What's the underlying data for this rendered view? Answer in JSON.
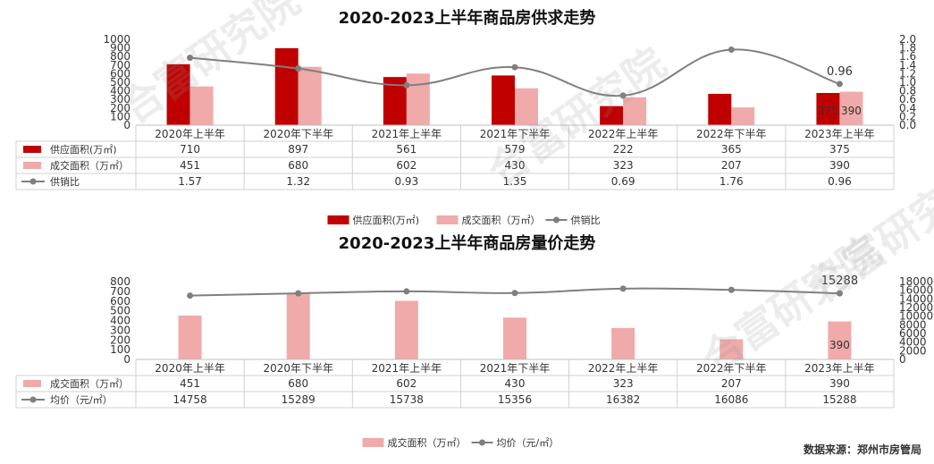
{
  "source_text": "数据来源：郑州市房管局",
  "watermark": "合富研究院",
  "chart_data": [
    {
      "type": "bar+line",
      "title": "2020-2023上半年商品房供求走势",
      "categories": [
        "2020年上半年",
        "2020年下半年",
        "2021年上半年",
        "2021年下半年",
        "2022年上半年",
        "2022年下半年",
        "2023年上半年"
      ],
      "series": [
        {
          "name": "供应面积(万㎡)",
          "kind": "bar",
          "axis": "left",
          "color": "#c00000",
          "values": [
            710,
            897,
            561,
            579,
            222,
            365,
            375
          ]
        },
        {
          "name": "成交面积（万㎡）",
          "kind": "bar",
          "axis": "left",
          "color": "#f0aaaa",
          "values": [
            451,
            680,
            602,
            430,
            323,
            207,
            390
          ]
        },
        {
          "name": "供销比",
          "kind": "line",
          "axis": "right",
          "color": "#7f7f7f",
          "values": [
            1.57,
            1.32,
            0.93,
            1.35,
            0.69,
            1.76,
            0.96
          ]
        }
      ],
      "table_values": [
        [
          "710",
          "897",
          "561",
          "579",
          "222",
          "365",
          "375"
        ],
        [
          "451",
          "680",
          "602",
          "430",
          "323",
          "207",
          "390"
        ],
        [
          "1.57",
          "1.32",
          "0.93",
          "1.35",
          "0.69",
          "1.76",
          "0.96"
        ]
      ],
      "ylim_left": [
        0,
        1000
      ],
      "yticks_left": [
        "0",
        "100",
        "200",
        "300",
        "400",
        "500",
        "600",
        "700",
        "800",
        "900",
        "1000"
      ],
      "ylim_right": [
        0,
        2.0
      ],
      "yticks_right": [
        "0.0",
        "0.2",
        "0.4",
        "0.6",
        "0.8",
        "1.0",
        "1.2",
        "1.4",
        "1.6",
        "1.8",
        "2.0"
      ],
      "annotations": {
        "bar1_last": "375",
        "bar2_last": "390",
        "line_last": "0.96"
      },
      "legend": [
        "供应面积(万㎡)",
        "成交面积（万㎡）",
        "供销比"
      ],
      "legend_position": "bottom"
    },
    {
      "type": "bar+line",
      "title": "2020-2023上半年商品房量价走势",
      "categories": [
        "2020年上半年",
        "2020年下半年",
        "2021年上半年",
        "2021年下半年",
        "2022年上半年",
        "2022年下半年",
        "2023年上半年"
      ],
      "series": [
        {
          "name": "成交面积（万㎡）",
          "kind": "bar",
          "axis": "left",
          "color": "#f0aaaa",
          "values": [
            451,
            680,
            602,
            430,
            323,
            207,
            390
          ]
        },
        {
          "name": "均价（元/㎡）",
          "kind": "line",
          "axis": "right",
          "color": "#7f7f7f",
          "values": [
            14758,
            15289,
            15738,
            15356,
            16382,
            16086,
            15288
          ]
        }
      ],
      "table_values": [
        [
          "451",
          "680",
          "602",
          "430",
          "323",
          "207",
          "390"
        ],
        [
          "14758",
          "15289",
          "15738",
          "15356",
          "16382",
          "16086",
          "15288"
        ]
      ],
      "ylim_left": [
        0,
        800
      ],
      "yticks_left": [
        "0",
        "100",
        "200",
        "300",
        "400",
        "500",
        "600",
        "700",
        "800"
      ],
      "ylim_right": [
        0,
        18000
      ],
      "yticks_right": [
        "0",
        "2000",
        "4000",
        "6000",
        "8000",
        "10000",
        "12000",
        "14000",
        "16000",
        "18000"
      ],
      "annotations": {
        "bar1_last": "390",
        "line_last": "15288"
      },
      "legend": [
        "成交面积（万㎡）",
        "均价（元/㎡）"
      ],
      "legend_position": "bottom"
    }
  ]
}
